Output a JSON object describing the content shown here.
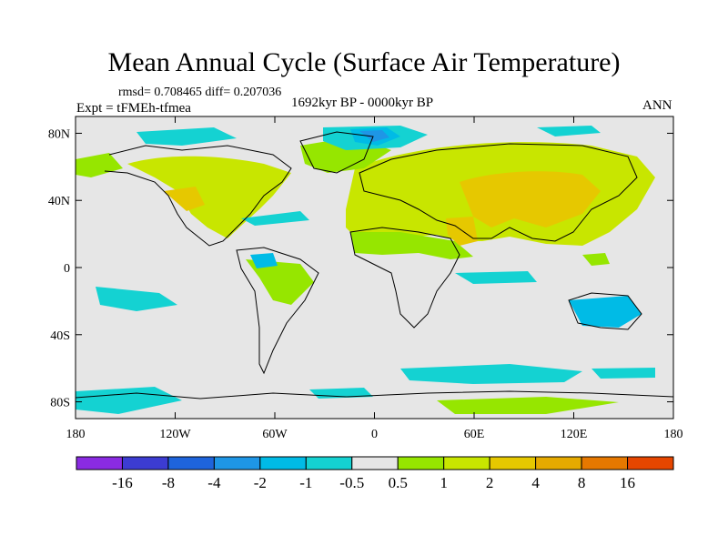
{
  "title": "Mean Annual Cycle (Surface Air Temperature)",
  "stats": "rmsd= 0.708465 diff= 0.207036",
  "experiment": "Expt = tFMEh-tfmea",
  "period": "1692kyr BP - 0000kyr BP",
  "season": "ANN",
  "map": {
    "lon_range": [
      -180,
      180
    ],
    "lat_range": [
      -90,
      90
    ],
    "background_color": "#e6e6e6",
    "x_ticks": [
      {
        "lon": -180,
        "label": "180"
      },
      {
        "lon": -120,
        "label": "120W"
      },
      {
        "lon": -60,
        "label": "60W"
      },
      {
        "lon": 0,
        "label": "0"
      },
      {
        "lon": 60,
        "label": "60E"
      },
      {
        "lon": 120,
        "label": "120E"
      },
      {
        "lon": 180,
        "label": "180"
      }
    ],
    "y_ticks": [
      {
        "lat": 80,
        "label": "80N"
      },
      {
        "lat": 40,
        "label": "40N"
      },
      {
        "lat": 0,
        "label": "0"
      },
      {
        "lat": -40,
        "label": "40S"
      },
      {
        "lat": -80,
        "label": "80S"
      }
    ]
  },
  "colorbar": {
    "colors": [
      "#8a2be2",
      "#3c3cd2",
      "#1e64dc",
      "#1e96e6",
      "#00bbe6",
      "#14d2d2",
      "#e6e6e6",
      "#96e600",
      "#c8e600",
      "#e6c800",
      "#e6aa00",
      "#e67800",
      "#e64600"
    ],
    "labels": [
      "-16",
      "-8",
      "-4",
      "-2",
      "-1",
      "-0.5",
      "0.5",
      "1",
      "2",
      "4",
      "8",
      "16"
    ]
  }
}
